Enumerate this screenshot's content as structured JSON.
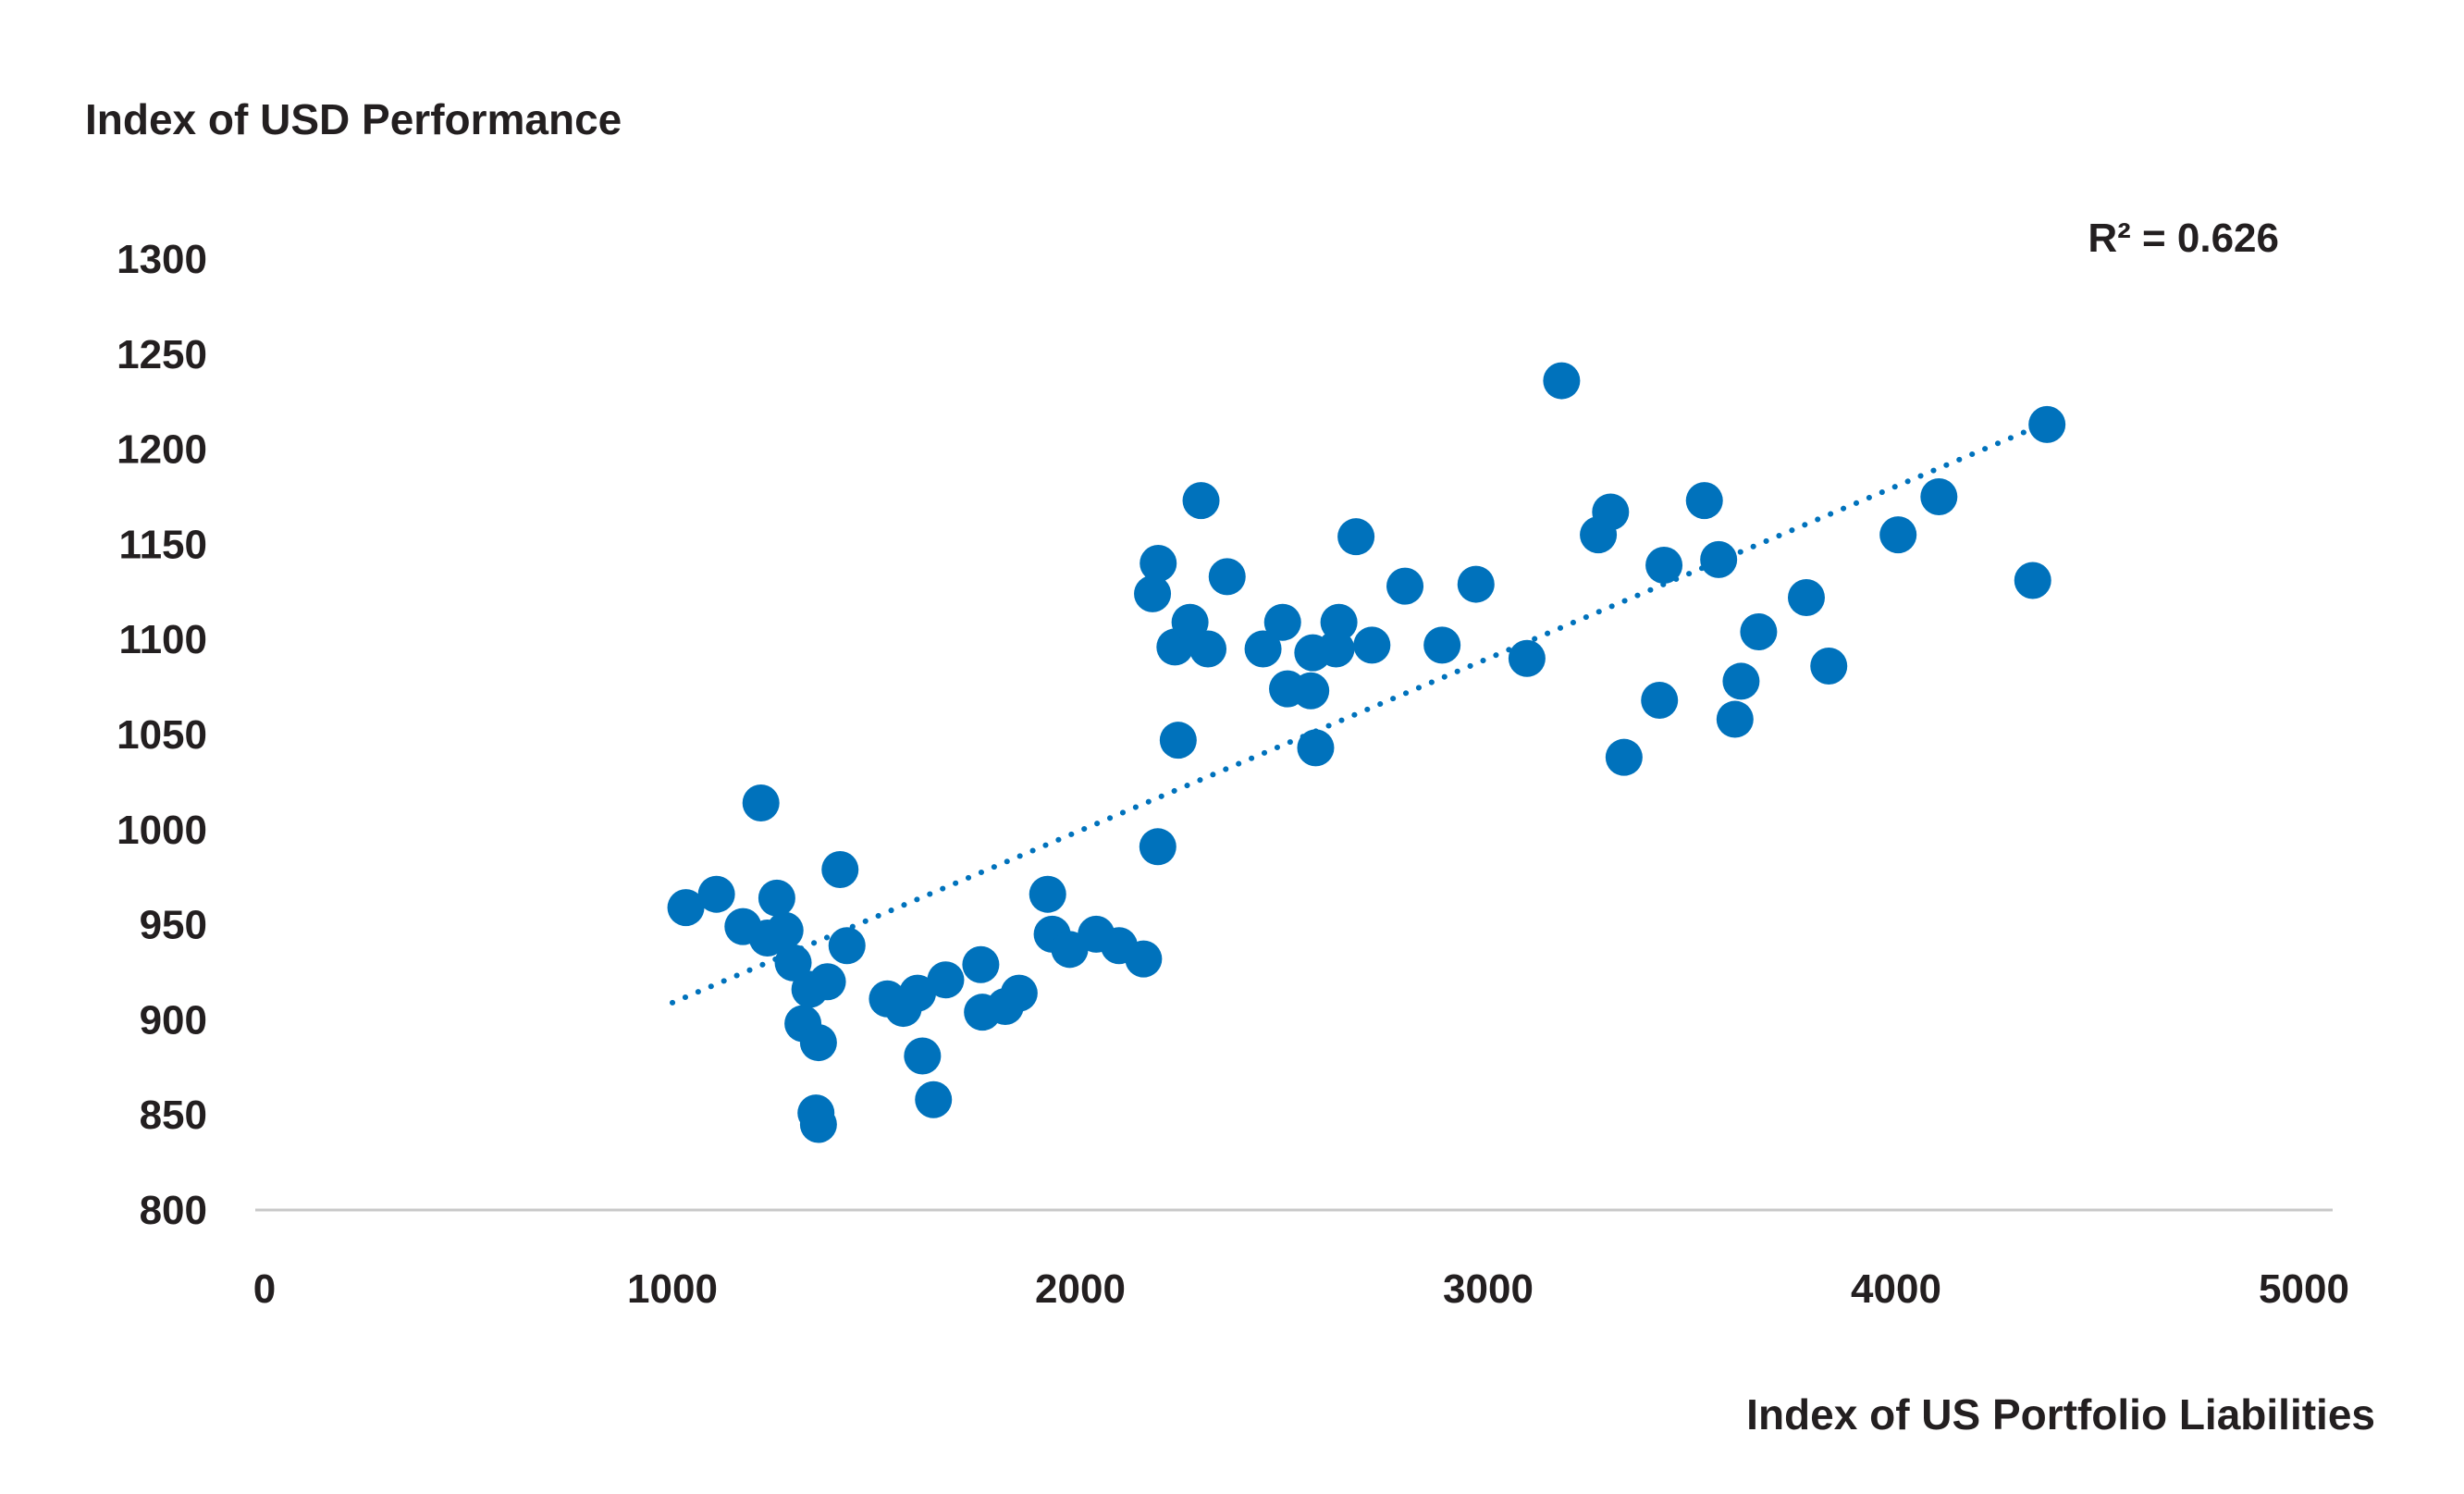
{
  "chart_data": {
    "type": "scatter",
    "title": "",
    "xlabel": "Index of US Portfolio Liabilities",
    "ylabel": "Index of USD Performance",
    "xlim": [
      0,
      5000
    ],
    "ylim": [
      800,
      1300
    ],
    "xticks": [
      0,
      1000,
      2000,
      3000,
      4000,
      5000
    ],
    "yticks": [
      800,
      850,
      900,
      950,
      1000,
      1050,
      1100,
      1150,
      1200,
      1250,
      1300
    ],
    "grid": false,
    "legend": "none",
    "marker_color": "#0072bc",
    "trendline": {
      "style": "dotted",
      "color": "#0072bc",
      "x": [
        1000,
        4370
      ],
      "y": [
        909,
        1214
      ],
      "r_squared_label": "R² = 0.626"
    },
    "series": [
      {
        "points": [
          [
            1033,
            959
          ],
          [
            1108,
            966
          ],
          [
            1173,
            949
          ],
          [
            1217,
            1014
          ],
          [
            1233,
            943
          ],
          [
            1256,
            964
          ],
          [
            1276,
            947
          ],
          [
            1296,
            930
          ],
          [
            1320,
            898
          ],
          [
            1337,
            916
          ],
          [
            1358,
            888
          ],
          [
            1352,
            851
          ],
          [
            1358,
            845
          ],
          [
            1380,
            920
          ],
          [
            1411,
            979
          ],
          [
            1428,
            939
          ],
          [
            1527,
            911
          ],
          [
            1566,
            906
          ],
          [
            1601,
            914
          ],
          [
            1613,
            881
          ],
          [
            1640,
            858
          ],
          [
            1670,
            921
          ],
          [
            1756,
            929
          ],
          [
            1760,
            904
          ],
          [
            1816,
            907
          ],
          [
            1850,
            914
          ],
          [
            1920,
            966
          ],
          [
            1931,
            945
          ],
          [
            1974,
            937
          ],
          [
            2039,
            945
          ],
          [
            2095,
            939
          ],
          [
            2155,
            932
          ],
          [
            2177,
            1124
          ],
          [
            2191,
            1140
          ],
          [
            2190,
            991
          ],
          [
            2232,
            1096
          ],
          [
            2240,
            1047
          ],
          [
            2269,
            1109
          ],
          [
            2296,
            1173
          ],
          [
            2313,
            1095
          ],
          [
            2360,
            1133
          ],
          [
            2448,
            1095
          ],
          [
            2496,
            1109
          ],
          [
            2508,
            1074
          ],
          [
            2565,
            1073
          ],
          [
            2570,
            1093
          ],
          [
            2577,
            1043
          ],
          [
            2627,
            1095
          ],
          [
            2634,
            1109
          ],
          [
            2676,
            1154
          ],
          [
            2715,
            1097
          ],
          [
            2796,
            1128
          ],
          [
            2887,
            1097
          ],
          [
            2970,
            1129
          ],
          [
            3095,
            1090
          ],
          [
            3180,
            1236
          ],
          [
            3270,
            1155
          ],
          [
            3300,
            1167
          ],
          [
            3333,
            1038
          ],
          [
            3420,
            1068
          ],
          [
            3431,
            1139
          ],
          [
            3530,
            1173
          ],
          [
            3565,
            1142
          ],
          [
            3605,
            1058
          ],
          [
            3620,
            1078
          ],
          [
            3663,
            1104
          ],
          [
            3780,
            1122
          ],
          [
            3835,
            1086
          ],
          [
            4005,
            1155
          ],
          [
            4105,
            1175
          ],
          [
            4335,
            1131
          ],
          [
            4370,
            1213
          ]
        ]
      }
    ]
  }
}
